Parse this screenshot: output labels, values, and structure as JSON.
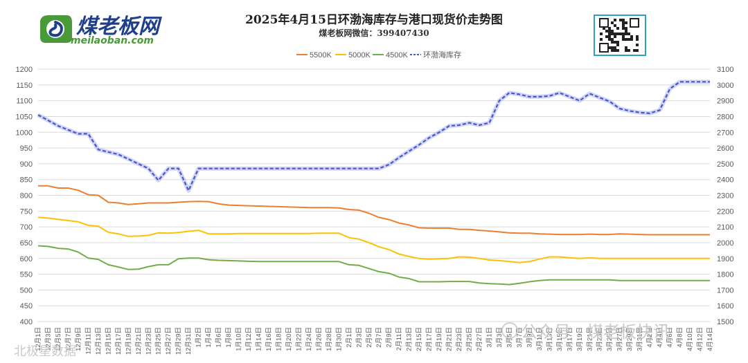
{
  "brand": {
    "logo_cn": "煤老板网",
    "logo_en": "meilaoban.com",
    "colors": {
      "green": "#4a9a3a",
      "navy": "#1f3f8a"
    }
  },
  "header": {
    "title": "2025年4月15日环渤海库存与港口现货价走势图",
    "subtitle": "煤老板网微信：399407430"
  },
  "watermark": {
    "right": "公众号 · 煤老板快讯",
    "left": "北极星数据"
  },
  "chart_data": {
    "type": "line",
    "title": "2025年4月15日环渤海库存与港口现货价走势图",
    "x_labels": [
      "12月1日",
      "12月3日",
      "12月5日",
      "12月7日",
      "12月9日",
      "12月11日",
      "12月13日",
      "12月15日",
      "12月17日",
      "12月19日",
      "12月21日",
      "12月23日",
      "12月25日",
      "12月27日",
      "12月29日",
      "12月31日",
      "1月2日",
      "1月4日",
      "1月6日",
      "1月8日",
      "1月10日",
      "1月12日",
      "1月14日",
      "1月16日",
      "1月18日",
      "1月20日",
      "1月22日",
      "1月24日",
      "1月26日",
      "1月28日",
      "1月30日",
      "2月1日",
      "2月3日",
      "2月5日",
      "2月7日",
      "2月9日",
      "2月11日",
      "2月13日",
      "2月15日",
      "2月17日",
      "2月19日",
      "2月21日",
      "2月23日",
      "2月25日",
      "2月27日",
      "3月1日",
      "3月3日",
      "3月5日",
      "3月7日",
      "3月9日",
      "3月11日",
      "3月13日",
      "3月15日",
      "3月17日",
      "3月19日",
      "3月21日",
      "3月23日",
      "3月25日",
      "3月27日",
      "3月29日",
      "3月31日",
      "4月2日",
      "4月4日",
      "4月6日",
      "4月8日",
      "4月10日",
      "4月12日",
      "4月14日"
    ],
    "left_axis": {
      "min": 400,
      "max": 1200,
      "step": 50
    },
    "right_axis": {
      "min": 1500,
      "max": 3100,
      "step": 100
    },
    "legend": [
      "5500K",
      "5000K",
      "4500K",
      "环渤海库存"
    ],
    "series": [
      {
        "name": "5500K",
        "axis": "left",
        "color": "#ed7d31",
        "style": "solid",
        "values": [
          830,
          830,
          823,
          823,
          816,
          802,
          800,
          778,
          776,
          771,
          773,
          776,
          776,
          776,
          778,
          780,
          781,
          780,
          773,
          769,
          768,
          767,
          766,
          765,
          764,
          763,
          762,
          761,
          761,
          761,
          760,
          755,
          753,
          743,
          730,
          723,
          712,
          706,
          697,
          696,
          696,
          696,
          692,
          692,
          689,
          687,
          684,
          681,
          680,
          680,
          678,
          677,
          676,
          676,
          676,
          677,
          676,
          676,
          678,
          677,
          676,
          675,
          675,
          675,
          675,
          675,
          675,
          675
        ]
      },
      {
        "name": "5000K",
        "axis": "left",
        "color": "#ffc000",
        "style": "solid",
        "values": [
          730,
          728,
          724,
          720,
          716,
          705,
          702,
          683,
          678,
          670,
          671,
          673,
          681,
          680,
          682,
          686,
          689,
          678,
          678,
          678,
          679,
          679,
          679,
          679,
          679,
          679,
          679,
          679,
          680,
          680,
          680,
          666,
          661,
          650,
          637,
          628,
          614,
          606,
          600,
          598,
          599,
          600,
          605,
          604,
          600,
          595,
          593,
          590,
          587,
          590,
          598,
          605,
          605,
          602,
          600,
          602,
          600,
          600,
          600,
          600,
          600,
          600,
          600,
          600,
          600,
          600,
          600,
          600
        ]
      },
      {
        "name": "4500K",
        "axis": "left",
        "color": "#70ad47",
        "style": "solid",
        "values": [
          640,
          638,
          632,
          630,
          620,
          601,
          597,
          580,
          573,
          565,
          566,
          574,
          580,
          580,
          599,
          601,
          601,
          596,
          594,
          593,
          592,
          591,
          590,
          590,
          590,
          590,
          590,
          590,
          590,
          590,
          590,
          580,
          578,
          568,
          558,
          553,
          541,
          536,
          526,
          526,
          526,
          527,
          527,
          527,
          522,
          520,
          519,
          517,
          521,
          526,
          530,
          532,
          532,
          532,
          532,
          532,
          532,
          532,
          530,
          530,
          530,
          530,
          530,
          530,
          530,
          530,
          530,
          530
        ]
      },
      {
        "name": "环渤海库存",
        "axis": "right",
        "color": "#4a55c9",
        "style": "dashed",
        "values": [
          2810,
          2775,
          2740,
          2715,
          2690,
          2690,
          2590,
          2575,
          2560,
          2530,
          2500,
          2470,
          2395,
          2470,
          2470,
          2330,
          2470,
          2470,
          2470,
          2470,
          2470,
          2470,
          2470,
          2470,
          2470,
          2470,
          2470,
          2470,
          2470,
          2470,
          2470,
          2470,
          2470,
          2470,
          2470,
          2495,
          2540,
          2580,
          2620,
          2665,
          2700,
          2740,
          2745,
          2760,
          2745,
          2760,
          2900,
          2950,
          2940,
          2925,
          2925,
          2930,
          2950,
          2925,
          2900,
          2945,
          2920,
          2895,
          2850,
          2835,
          2825,
          2820,
          2840,
          2975,
          3020,
          3020,
          3020,
          3020
        ]
      }
    ]
  }
}
